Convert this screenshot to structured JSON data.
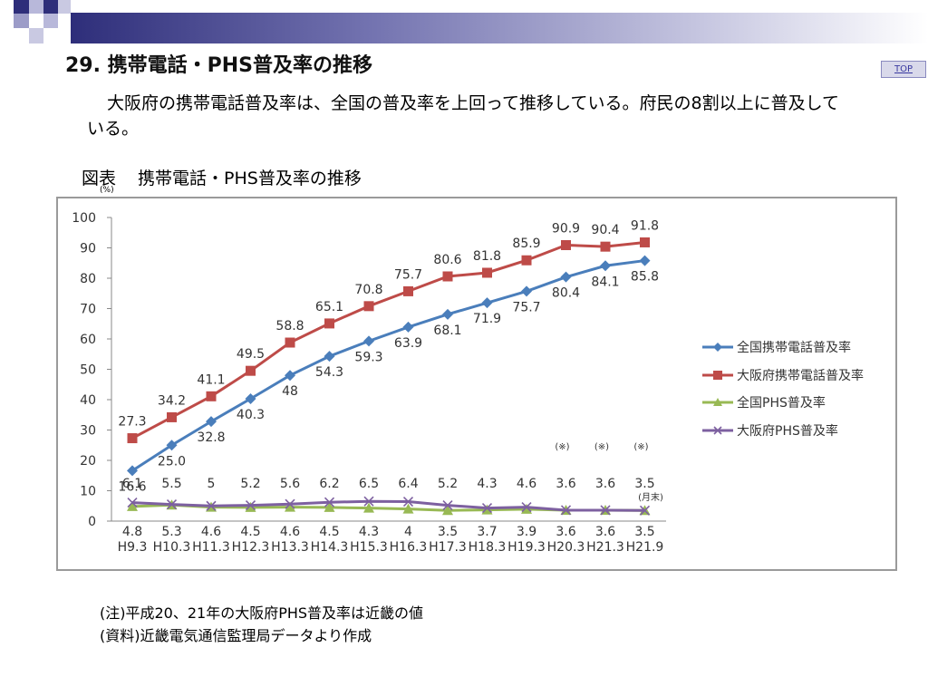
{
  "page": {
    "title": "29. 携帯電話・PHS普及率の推移",
    "top_button": "TOP",
    "description": "大阪府の携帯電話普及率は、全国の普及率を上回って推移している。府民の8割以上に普及している。",
    "figure_label": "図表",
    "figure_title": "携帯電話・PHS普及率の推移",
    "unit": "(%)",
    "notes": [
      "(注)平成20、21年の大阪府PHS普及率は近畿の値",
      "(資料)近畿電気通信監理局データより作成"
    ],
    "colors": {
      "brand_dark": "#2e2e7a",
      "brand_light": "#9c9cc8"
    }
  },
  "chart_data": {
    "type": "line",
    "categories": [
      "H9.3",
      "H10.3",
      "H11.3",
      "H12.3",
      "H13.3",
      "H14.3",
      "H15.3",
      "H16.3",
      "H17.3",
      "H18.3",
      "H19.3",
      "H20.3",
      "H21.3",
      "H21.9"
    ],
    "ylim": [
      0,
      100
    ],
    "yticks": [
      0,
      10,
      20,
      30,
      40,
      50,
      60,
      70,
      80,
      90,
      100
    ],
    "legend_position": "right",
    "grid": false,
    "annotations": {
      "mark": "(※)",
      "mark_categories": [
        "H20.3",
        "H21.3",
        "H21.9"
      ],
      "period_note": "(月末)"
    },
    "series": [
      {
        "name": "全国携帯電話普及率",
        "color": "#4a7ebb",
        "marker": "diamond",
        "values": [
          16.6,
          25.0,
          32.8,
          40.3,
          48,
          54.3,
          59.3,
          63.9,
          68.1,
          71.9,
          75.7,
          80.4,
          84.1,
          85.8
        ],
        "labels": [
          "16.6",
          "25.0",
          "32.8",
          "40.3",
          "48",
          "54.3",
          "59.3",
          "63.9",
          "68.1",
          "71.9",
          "75.7",
          "80.4",
          "84.1",
          "85.8"
        ]
      },
      {
        "name": "大阪府携帯電話普及率",
        "color": "#be4b48",
        "marker": "square",
        "values": [
          27.3,
          34.2,
          41.1,
          49.5,
          58.8,
          65.1,
          70.8,
          75.7,
          80.6,
          81.8,
          85.9,
          90.9,
          90.4,
          91.8
        ],
        "labels": [
          "27.3",
          "34.2",
          "41.1",
          "49.5",
          "58.8",
          "65.1",
          "70.8",
          "75.7",
          "80.6",
          "81.8",
          "85.9",
          "90.9",
          "90.4",
          "91.8"
        ]
      },
      {
        "name": "全国PHS普及率",
        "color": "#98b954",
        "marker": "triangle",
        "values": [
          4.8,
          5.3,
          4.6,
          4.5,
          4.6,
          4.5,
          4.3,
          4,
          3.5,
          3.7,
          3.9,
          3.6,
          3.6,
          3.5
        ],
        "labels": [
          "4.8",
          "5.3",
          "4.6",
          "4.5",
          "4.6",
          "4.5",
          "4.3",
          "4",
          "3.5",
          "3.7",
          "3.9",
          "3.6",
          "3.6",
          "3.5"
        ]
      },
      {
        "name": "大阪府PHS普及率",
        "color": "#7d60a0",
        "marker": "x",
        "values": [
          6.1,
          5.5,
          5,
          5.2,
          5.6,
          6.2,
          6.5,
          6.4,
          5.2,
          4.3,
          4.6,
          3.6,
          3.6,
          3.5
        ],
        "labels": [
          "6.1",
          "5.5",
          "5",
          "5.2",
          "5.6",
          "6.2",
          "6.5",
          "6.4",
          "5.2",
          "4.3",
          "4.6",
          "3.6",
          "3.6",
          "3.5"
        ]
      }
    ]
  }
}
